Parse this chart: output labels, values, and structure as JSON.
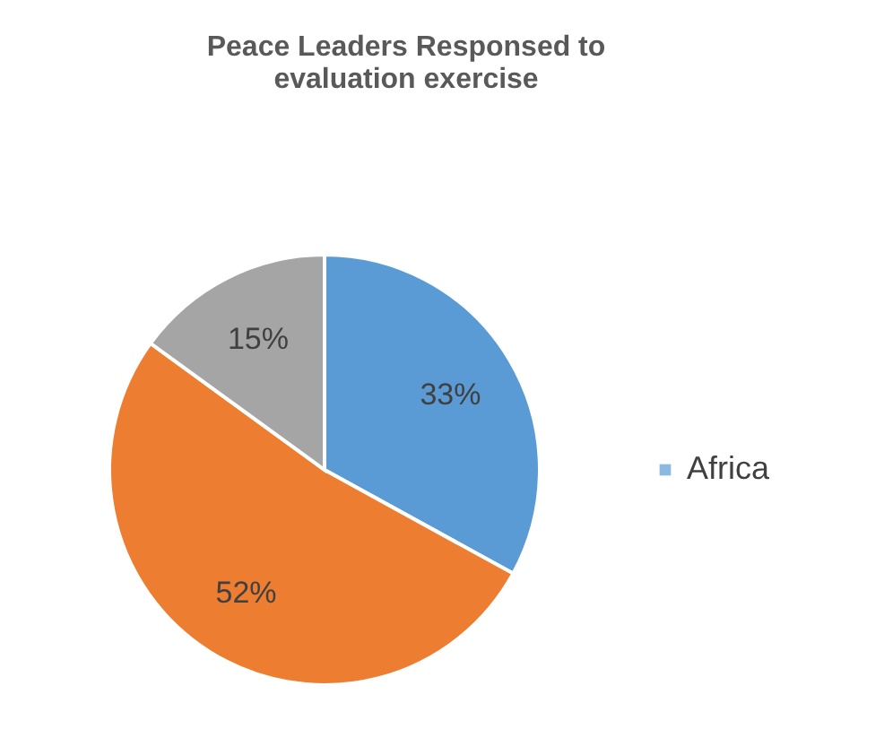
{
  "chart_data": {
    "type": "pie",
    "title": "Peace Leaders  Responsed to evaluation exercise",
    "categories": [
      "Africa",
      null,
      null
    ],
    "values": [
      33,
      52,
      15
    ],
    "colors": [
      "#5b9bd5",
      "#ed7d31",
      "#a5a5a5"
    ],
    "value_labels": [
      "33%",
      "52%",
      "15%"
    ],
    "legend": "right"
  }
}
